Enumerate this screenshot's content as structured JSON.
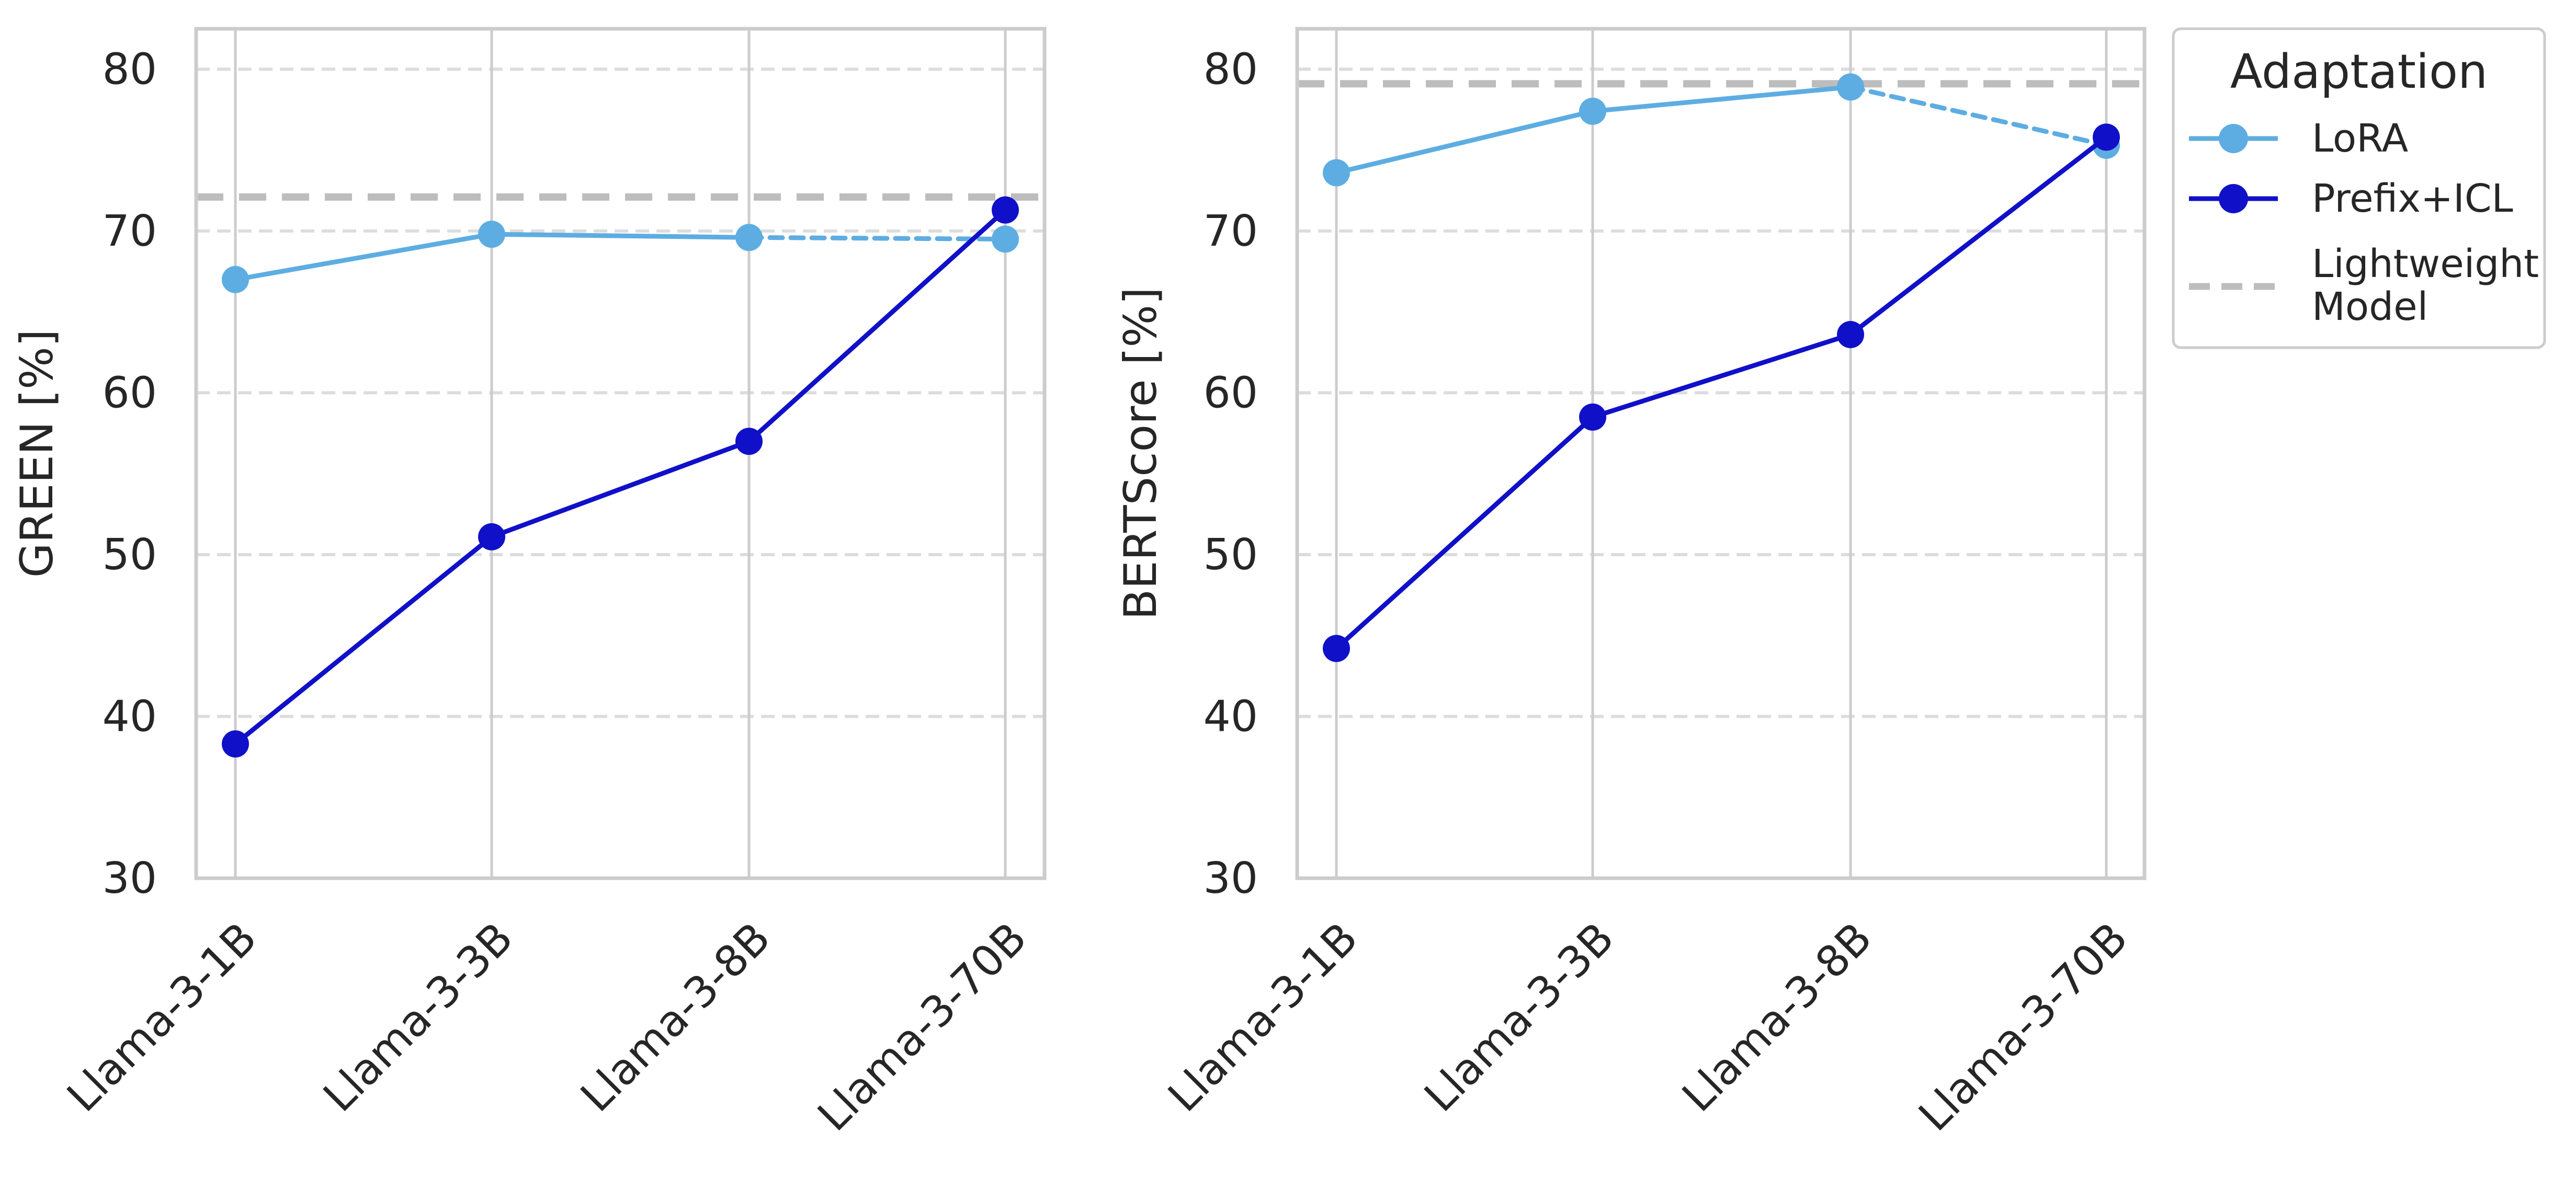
{
  "chart_data": [
    {
      "type": "line",
      "title": "",
      "xlabel": "",
      "ylabel": "GREEN [%]",
      "categories": [
        "Llama-3-1B",
        "Llama-3-3B",
        "Llama-3-8B",
        "Llama-3-70B"
      ],
      "ylim": [
        30,
        82.5
      ],
      "yticks": [
        30,
        40,
        50,
        60,
        70,
        80
      ],
      "grid": true,
      "series": [
        {
          "name": "LoRA",
          "values": [
            67.0,
            69.8,
            69.6,
            69.5
          ],
          "color": "#5dade2",
          "dashed_last_segment": true
        },
        {
          "name": "Prefix+ICL",
          "values": [
            38.3,
            51.1,
            57.0,
            71.3
          ],
          "color": "#1010c8",
          "dashed_last_segment": false
        }
      ],
      "reference_line": {
        "name": "Lightweight Model",
        "value": 72.1,
        "color": "#bdbdbd"
      }
    },
    {
      "type": "line",
      "title": "",
      "xlabel": "",
      "ylabel": "BERTScore [%]",
      "categories": [
        "Llama-3-1B",
        "Llama-3-3B",
        "Llama-3-8B",
        "Llama-3-70B"
      ],
      "ylim": [
        30,
        82.5
      ],
      "yticks": [
        30,
        40,
        50,
        60,
        70,
        80
      ],
      "grid": true,
      "series": [
        {
          "name": "LoRA",
          "values": [
            73.6,
            77.4,
            78.9,
            75.3
          ],
          "color": "#5dade2",
          "dashed_last_segment": true
        },
        {
          "name": "Prefix+ICL",
          "values": [
            44.2,
            58.5,
            63.6,
            75.8
          ],
          "color": "#1010c8",
          "dashed_last_segment": false
        }
      ],
      "reference_line": {
        "name": "Lightweight Model",
        "value": 79.1,
        "color": "#bdbdbd"
      }
    }
  ],
  "legend": {
    "title": "Adaptation",
    "placement": "outside-top-right",
    "entries": [
      {
        "label": "LoRA",
        "color": "#5dade2",
        "style": "line-marker"
      },
      {
        "label": "Prefix+ICL",
        "color": "#1010c8",
        "style": "line-marker"
      },
      {
        "label_line1": "Lightweight",
        "label_line2": "Model",
        "color": "#bdbdbd",
        "style": "dashed"
      }
    ]
  }
}
